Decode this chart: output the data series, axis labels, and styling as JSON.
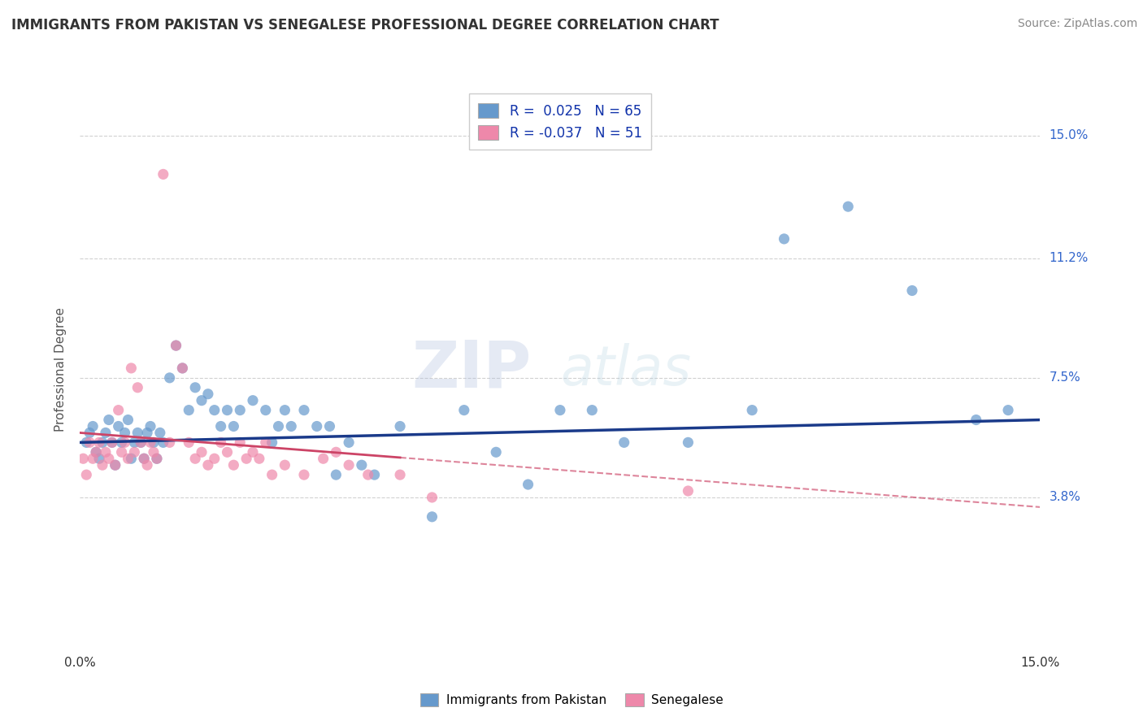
{
  "title": "IMMIGRANTS FROM PAKISTAN VS SENEGALESE PROFESSIONAL DEGREE CORRELATION CHART",
  "source": "Source: ZipAtlas.com",
  "ylabel": "Professional Degree",
  "xlim": [
    0.0,
    15.0
  ],
  "ylim": [
    -1.0,
    16.5
  ],
  "ytick_positions": [
    3.8,
    7.5,
    11.2,
    15.0
  ],
  "ytick_labels": [
    "3.8%",
    "7.5%",
    "11.2%",
    "15.0%"
  ],
  "xtick_positions": [
    0.0,
    15.0
  ],
  "xtick_labels": [
    "0.0%",
    "15.0%"
  ],
  "grid_color": "#cccccc",
  "bg_color": "#ffffff",
  "watermark": "ZIPatlas",
  "blue_color": "#6699cc",
  "pink_color": "#ee88aa",
  "blue_line_color": "#1a3a8a",
  "pink_line_color": "#cc4466",
  "blue_r": 0.025,
  "blue_n": 65,
  "pink_r": -0.037,
  "pink_n": 51,
  "legend_label_blue": "Immigrants from Pakistan",
  "legend_label_pink": "Senegalese",
  "blue_x": [
    0.1,
    0.15,
    0.2,
    0.25,
    0.3,
    0.35,
    0.4,
    0.45,
    0.5,
    0.55,
    0.6,
    0.65,
    0.7,
    0.75,
    0.8,
    0.85,
    0.9,
    0.95,
    1.0,
    1.05,
    1.1,
    1.15,
    1.2,
    1.25,
    1.3,
    1.4,
    1.5,
    1.6,
    1.7,
    1.8,
    1.9,
    2.0,
    2.1,
    2.2,
    2.3,
    2.4,
    2.5,
    2.7,
    2.9,
    3.0,
    3.1,
    3.2,
    3.3,
    3.5,
    3.7,
    3.9,
    4.0,
    4.2,
    4.4,
    4.6,
    5.0,
    5.5,
    6.0,
    6.5,
    7.0,
    7.5,
    8.0,
    8.5,
    9.5,
    10.5,
    11.0,
    12.0,
    13.0,
    14.0,
    14.5
  ],
  "blue_y": [
    5.5,
    5.8,
    6.0,
    5.2,
    5.0,
    5.5,
    5.8,
    6.2,
    5.5,
    4.8,
    6.0,
    5.5,
    5.8,
    6.2,
    5.0,
    5.5,
    5.8,
    5.5,
    5.0,
    5.8,
    6.0,
    5.5,
    5.0,
    5.8,
    5.5,
    7.5,
    8.5,
    7.8,
    6.5,
    7.2,
    6.8,
    7.0,
    6.5,
    6.0,
    6.5,
    6.0,
    6.5,
    6.8,
    6.5,
    5.5,
    6.0,
    6.5,
    6.0,
    6.5,
    6.0,
    6.0,
    4.5,
    5.5,
    4.8,
    4.5,
    6.0,
    3.2,
    6.5,
    5.2,
    4.2,
    6.5,
    6.5,
    5.5,
    5.5,
    6.5,
    11.8,
    12.8,
    10.2,
    6.2,
    6.5
  ],
  "pink_x": [
    0.05,
    0.1,
    0.15,
    0.2,
    0.25,
    0.3,
    0.35,
    0.4,
    0.45,
    0.5,
    0.55,
    0.6,
    0.65,
    0.7,
    0.75,
    0.8,
    0.85,
    0.9,
    0.95,
    1.0,
    1.05,
    1.1,
    1.15,
    1.2,
    1.3,
    1.4,
    1.5,
    1.6,
    1.7,
    1.8,
    1.9,
    2.0,
    2.1,
    2.2,
    2.3,
    2.4,
    2.5,
    2.6,
    2.7,
    2.8,
    2.9,
    3.0,
    3.2,
    3.5,
    3.8,
    4.0,
    4.2,
    4.5,
    5.0,
    5.5,
    9.5
  ],
  "pink_y": [
    5.0,
    4.5,
    5.5,
    5.0,
    5.2,
    5.5,
    4.8,
    5.2,
    5.0,
    5.5,
    4.8,
    6.5,
    5.2,
    5.5,
    5.0,
    7.8,
    5.2,
    7.2,
    5.5,
    5.0,
    4.8,
    5.5,
    5.2,
    5.0,
    13.8,
    5.5,
    8.5,
    7.8,
    5.5,
    5.0,
    5.2,
    4.8,
    5.0,
    5.5,
    5.2,
    4.8,
    5.5,
    5.0,
    5.2,
    5.0,
    5.5,
    4.5,
    4.8,
    4.5,
    5.0,
    5.2,
    4.8,
    4.5,
    4.5,
    3.8,
    4.0
  ],
  "pink_solid_end_x": 5.0,
  "blue_trend_x0": 0.0,
  "blue_trend_y0": 5.5,
  "blue_trend_x1": 15.0,
  "blue_trend_y1": 6.2,
  "pink_trend_x0": 0.0,
  "pink_trend_y0": 5.8,
  "pink_trend_x1": 15.0,
  "pink_trend_y1": 3.5
}
